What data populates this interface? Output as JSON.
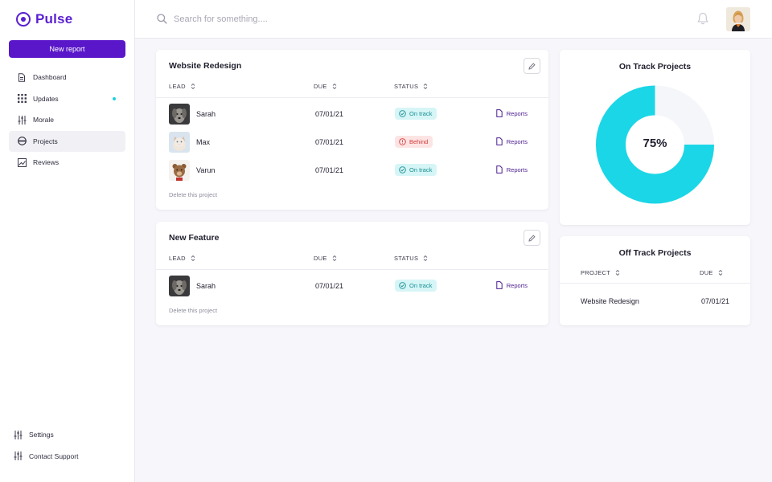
{
  "app": {
    "name": "Pulse"
  },
  "sidebar": {
    "new_report_label": "New report",
    "items": [
      {
        "label": "Dashboard",
        "icon": "file-icon"
      },
      {
        "label": "Updates",
        "icon": "grid-icon",
        "has_dot": true
      },
      {
        "label": "Morale",
        "icon": "sliders-icon"
      },
      {
        "label": "Projects",
        "icon": "projects-icon",
        "active": true
      },
      {
        "label": "Reviews",
        "icon": "chart-icon"
      }
    ],
    "bottom_items": [
      {
        "label": "Settings",
        "icon": "settings-icon"
      },
      {
        "label": "Contact Support",
        "icon": "support-icon"
      }
    ]
  },
  "topbar": {
    "search_placeholder": "Search for something...."
  },
  "projects": [
    {
      "title": "Website Redesign",
      "headers": {
        "lead": "LEAD",
        "due": "DUE",
        "status": "STATUS"
      },
      "rows": [
        {
          "lead": "Sarah",
          "due": "07/01/21",
          "status": "On track",
          "status_type": "on",
          "action": "Reports"
        },
        {
          "lead": "Max",
          "due": "07/01/21",
          "status": "Behind",
          "status_type": "behind",
          "action": "Reports"
        },
        {
          "lead": "Varun",
          "due": "07/01/21",
          "status": "On track",
          "status_type": "on",
          "action": "Reports"
        }
      ],
      "delete_label": "Delete this project"
    },
    {
      "title": "New Feature",
      "headers": {
        "lead": "LEAD",
        "due": "DUE",
        "status": "STATUS"
      },
      "rows": [
        {
          "lead": "Sarah",
          "due": "07/01/21",
          "status": "On track",
          "status_type": "on",
          "action": "Reports"
        }
      ],
      "delete_label": "Delete this project"
    }
  ],
  "on_track": {
    "title": "On Track Projects",
    "percent": 75,
    "label": "75%",
    "color": "#1ad6e6",
    "track_color": "#f5f6fa"
  },
  "off_track": {
    "title": "Off Track Projects",
    "headers": {
      "project": "PROJECT",
      "due": "DUE"
    },
    "rows": [
      {
        "project": "Website Redesign",
        "due": "07/01/21"
      }
    ]
  },
  "colors": {
    "brand": "#5a1fd1",
    "button": "#5a17c9",
    "on_track_bg": "#d6f5f6",
    "on_track_text": "#178e93",
    "behind_bg": "#fde4e4",
    "behind_text": "#d23c3c"
  }
}
